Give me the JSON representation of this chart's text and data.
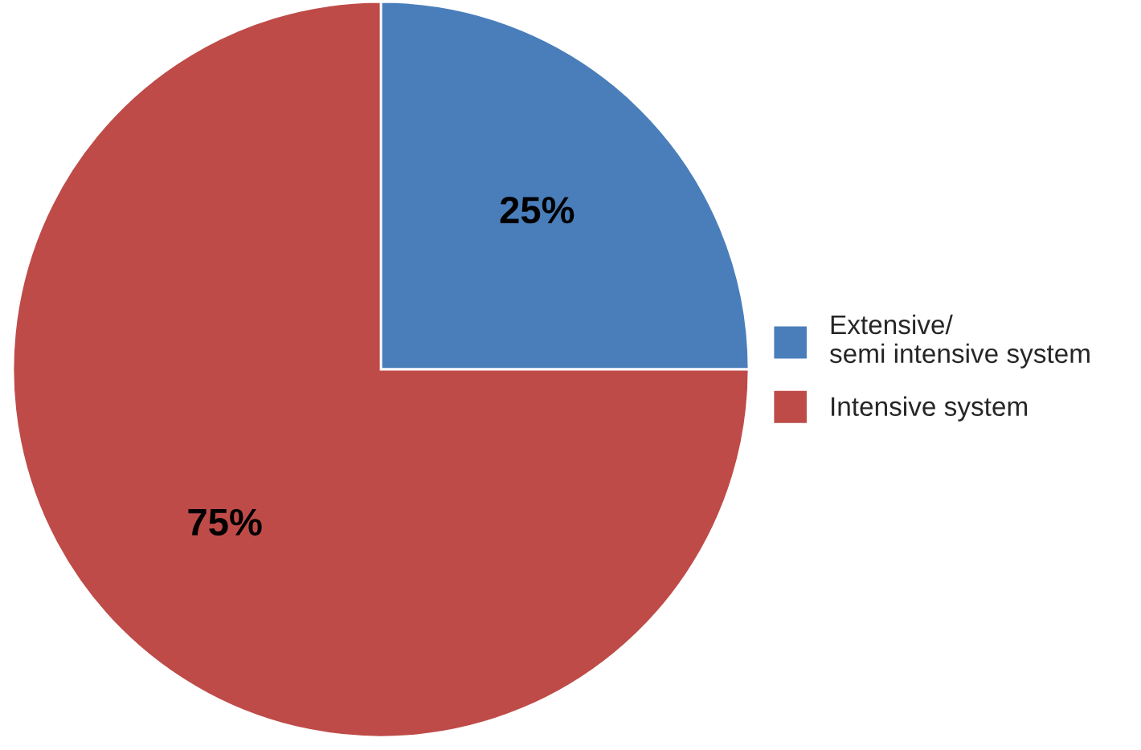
{
  "chart_data": {
    "type": "pie",
    "categories": [
      "Extensive/\nsemi intensive system",
      "Intensive system"
    ],
    "values": [
      25,
      75
    ],
    "colors": [
      "#4a7ebb",
      "#be4b48"
    ],
    "value_labels": [
      "25%",
      "75%"
    ],
    "legend": "right"
  }
}
